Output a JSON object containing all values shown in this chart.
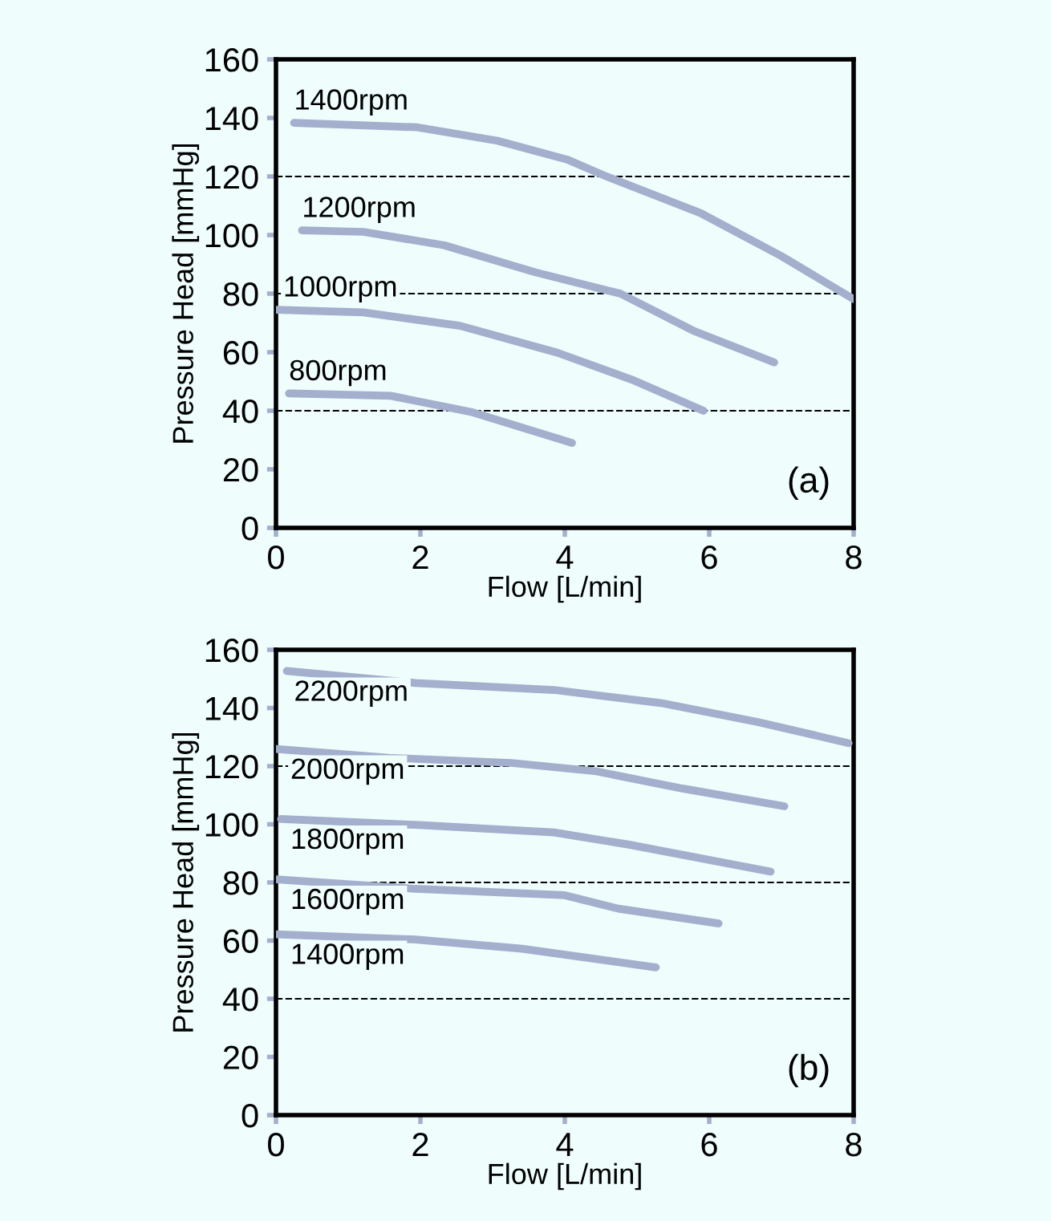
{
  "chart_data": [
    {
      "type": "line",
      "xlabel": "Flow [L/min]",
      "ylabel": "Pressure Head [mmHg]",
      "xlim": [
        0,
        8
      ],
      "ylim": [
        0,
        160
      ],
      "xticks": [
        0,
        2,
        4,
        6,
        8
      ],
      "yticks": [
        0,
        20,
        40,
        60,
        80,
        100,
        120,
        140,
        160
      ],
      "grid": false,
      "legend": false,
      "marker": "none",
      "line_style": "solid",
      "annotations": [
        "(a)"
      ],
      "ref_lines": [
        {
          "axis": "y",
          "value": 40,
          "color": "#000000",
          "line_style": "dashed"
        },
        {
          "axis": "y",
          "value": 80,
          "color": "#000000",
          "line_style": "dashed"
        },
        {
          "axis": "y",
          "value": 120,
          "color": "#000000",
          "line_style": "dashed"
        }
      ],
      "series": [
        {
          "name": "1400rpm",
          "color": "#a3afcc",
          "x": [
            0.25,
            1.96,
            3.07,
            4.03,
            4.55,
            5.88,
            7.0,
            8.0
          ],
          "values": [
            138.3,
            136.8,
            132.2,
            125.8,
            120.3,
            107.5,
            92.8,
            78.1
          ]
        },
        {
          "name": "1200rpm",
          "color": "#a3afcc",
          "x": [
            0.36,
            1.21,
            2.33,
            3.59,
            4.77,
            5.8,
            6.9
          ],
          "values": [
            101.6,
            101.1,
            96.5,
            87.3,
            80,
            67.1,
            56.5
          ]
        },
        {
          "name": "1000rpm",
          "color": "#a3afcc",
          "x": [
            0,
            1.21,
            2.55,
            3.9,
            4.93,
            5.92
          ],
          "values": [
            74.5,
            73.6,
            69,
            59.8,
            50.6,
            40
          ]
        },
        {
          "name": "800rpm",
          "color": "#a3afcc",
          "x": [
            0.18,
            1.59,
            2.7,
            4.1
          ],
          "values": [
            45.9,
            45.1,
            39.6,
            29
          ]
        }
      ]
    },
    {
      "type": "line",
      "xlabel": "Flow [L/min]",
      "ylabel": "Pressure Head [mmHg]",
      "xlim": [
        0,
        8
      ],
      "ylim": [
        0,
        160
      ],
      "xticks": [
        0,
        2,
        4,
        6,
        8
      ],
      "yticks": [
        0,
        20,
        40,
        60,
        80,
        100,
        120,
        140,
        160
      ],
      "grid": false,
      "legend": false,
      "marker": "none",
      "line_style": "solid",
      "annotations": [
        "(b)"
      ],
      "ref_lines": [
        {
          "axis": "y",
          "value": 40,
          "color": "#000000",
          "line_style": "dashed"
        },
        {
          "axis": "y",
          "value": 80,
          "color": "#000000",
          "line_style": "dashed"
        },
        {
          "axis": "y",
          "value": 120,
          "color": "#000000",
          "line_style": "dashed"
        }
      ],
      "series": [
        {
          "name": "2200rpm",
          "color": "#a3afcc",
          "x": [
            0.15,
            1.93,
            3.85,
            5.33,
            6.67,
            7.93
          ],
          "values": [
            152.7,
            148.6,
            146.2,
            141.7,
            135.2,
            127.9
          ]
        },
        {
          "name": "2000rpm",
          "color": "#a3afcc",
          "x": [
            0,
            1.56,
            3.26,
            4.44,
            5.63,
            7.04
          ],
          "values": [
            125.9,
            122.9,
            121.1,
            118.2,
            112.3,
            106.2
          ]
        },
        {
          "name": "1800rpm",
          "color": "#a3afcc",
          "x": [
            0.07,
            1.93,
            3.85,
            4.89,
            6.85
          ],
          "values": [
            101.8,
            99.8,
            97.2,
            93,
            83.7
          ]
        },
        {
          "name": "1600rpm",
          "color": "#a3afcc",
          "x": [
            0,
            1.93,
            4,
            4.74,
            6.13
          ],
          "values": [
            81.1,
            77.8,
            75.6,
            71,
            65.9
          ]
        },
        {
          "name": "1400rpm",
          "color": "#a3afcc",
          "x": [
            0,
            1.93,
            3.41,
            5.26
          ],
          "values": [
            62.2,
            60.4,
            57.2,
            50.8
          ]
        }
      ]
    }
  ]
}
